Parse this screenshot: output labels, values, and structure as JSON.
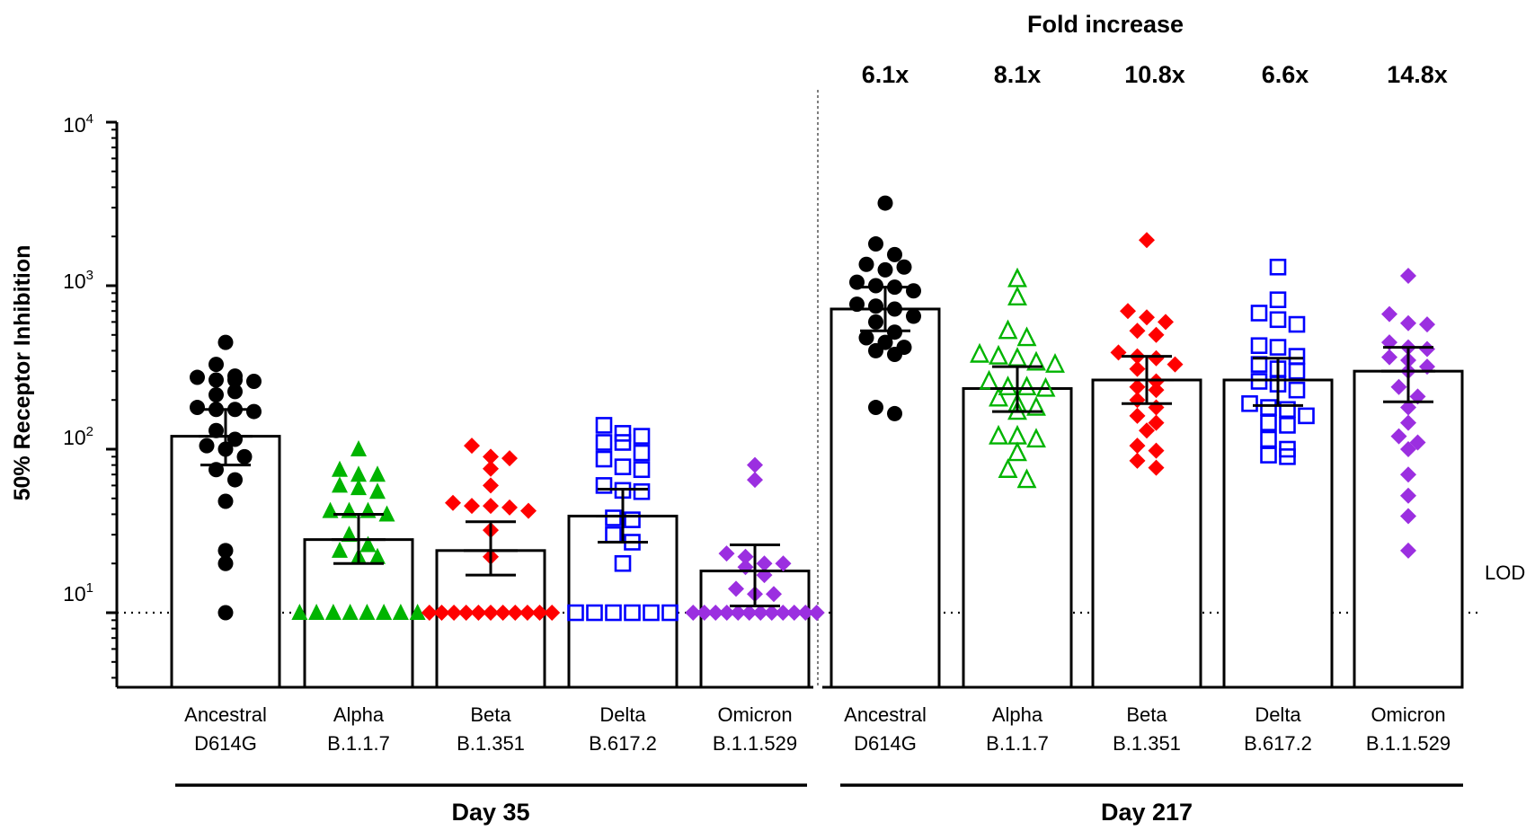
{
  "chart_data": {
    "type": "bar",
    "ylabel": "50% Receptor Inhibition",
    "yscale": "log",
    "ylim": [
      3.5,
      10000
    ],
    "ytick_labels": {
      "t1": {
        "base": "10",
        "exp": "1",
        "value": 10
      },
      "t2": {
        "base": "10",
        "exp": "2",
        "value": 100
      },
      "t3": {
        "base": "10",
        "exp": "3",
        "value": 1000
      },
      "t4": {
        "base": "10",
        "exp": "4",
        "value": 10000
      }
    },
    "lod": {
      "label": "LOD",
      "value": 10
    },
    "fold_header": "Fold increase",
    "group_labels": [
      "Day 35",
      "Day 217"
    ],
    "categories": [
      {
        "name": "Ancestral",
        "lineage": "D614G"
      },
      {
        "name": "Alpha",
        "lineage": "B.1.1.7"
      },
      {
        "name": "Beta",
        "lineage": "B.1.351"
      },
      {
        "name": "Delta",
        "lineage": "B.617.2"
      },
      {
        "name": "Omicron",
        "lineage": "B.1.1.529"
      },
      {
        "name": "Ancestral",
        "lineage": "D614G"
      },
      {
        "name": "Alpha",
        "lineage": "B.1.1.7"
      },
      {
        "name": "Beta",
        "lineage": "B.1.351"
      },
      {
        "name": "Delta",
        "lineage": "B.617.2"
      },
      {
        "name": "Omicron",
        "lineage": "B.1.1.529"
      }
    ],
    "fold_increase": [
      "6.1x",
      "8.1x",
      "10.8x",
      "6.6x",
      "14.8x"
    ],
    "bars": [
      {
        "group": "Day 35",
        "variant": "Ancestral",
        "marker": "filled-circle",
        "color": "#000000",
        "value": 120,
        "err_low": 80,
        "err_high": 175,
        "points": [
          450,
          330,
          275,
          265,
          265,
          260,
          280,
          215,
          225,
          180,
          175,
          175,
          170,
          130,
          115,
          105,
          100,
          90,
          75,
          65,
          48,
          24,
          20,
          10
        ]
      },
      {
        "group": "Day 35",
        "variant": "Alpha",
        "marker": "filled-triangle",
        "color": "#00b400",
        "value": 28,
        "err_low": 20,
        "err_high": 40,
        "points": [
          100,
          75,
          70,
          70,
          60,
          58,
          55,
          42,
          42,
          42,
          40,
          30,
          26,
          24,
          22,
          22,
          10,
          10,
          10,
          10,
          10,
          10,
          10,
          10
        ]
      },
      {
        "group": "Day 35",
        "variant": "Beta",
        "marker": "filled-diamond",
        "color": "#ff0000",
        "value": 24,
        "err_low": 17,
        "err_high": 36,
        "points": [
          105,
          90,
          88,
          76,
          60,
          47,
          45,
          45,
          44,
          42,
          32,
          22,
          10,
          10,
          10,
          10,
          10,
          10,
          10,
          10,
          10,
          10,
          10
        ]
      },
      {
        "group": "Day 35",
        "variant": "Delta",
        "marker": "open-square",
        "color": "#0000ff",
        "value": 39,
        "err_low": 27,
        "err_high": 57,
        "points": [
          140,
          125,
          120,
          110,
          110,
          95,
          87,
          78,
          75,
          60,
          56,
          55,
          38,
          37,
          30,
          27,
          20,
          10,
          10,
          10,
          10,
          10,
          10
        ]
      },
      {
        "group": "Day 35",
        "variant": "Omicron",
        "marker": "filled-diamond",
        "color": "#9b2fe0",
        "value": 18,
        "err_low": 11,
        "err_high": 26,
        "points": [
          80,
          65,
          23,
          22,
          20,
          20,
          19,
          17,
          14,
          13,
          13,
          10,
          10,
          10,
          10,
          10,
          10,
          10,
          10,
          10,
          10,
          10,
          10
        ]
      },
      {
        "group": "Day 217",
        "variant": "Ancestral",
        "marker": "filled-circle",
        "color": "#000000",
        "value": 720,
        "err_low": 530,
        "err_high": 980,
        "points": [
          3200,
          1800,
          1550,
          1350,
          1250,
          1300,
          1050,
          1000,
          980,
          930,
          770,
          750,
          720,
          650,
          600,
          520,
          480,
          450,
          420,
          400,
          380,
          180,
          165
        ]
      },
      {
        "group": "Day 217",
        "variant": "Alpha",
        "marker": "open-triangle",
        "color": "#00b400",
        "value": 235,
        "err_low": 170,
        "err_high": 320,
        "points": [
          1100,
          850,
          530,
          480,
          380,
          370,
          360,
          340,
          330,
          260,
          240,
          240,
          235,
          205,
          190,
          180,
          170,
          120,
          120,
          115,
          95,
          75,
          65
        ]
      },
      {
        "group": "Day 217",
        "variant": "Beta",
        "marker": "filled-diamond",
        "color": "#ff0000",
        "value": 265,
        "err_low": 190,
        "err_high": 370,
        "points": [
          1900,
          700,
          640,
          600,
          530,
          500,
          390,
          370,
          360,
          330,
          310,
          260,
          240,
          230,
          200,
          180,
          160,
          145,
          130,
          105,
          98,
          85,
          77
        ]
      },
      {
        "group": "Day 217",
        "variant": "Delta",
        "marker": "open-square",
        "color": "#0000ff",
        "value": 265,
        "err_low": 185,
        "err_high": 360,
        "points": [
          1300,
          820,
          680,
          620,
          580,
          430,
          420,
          370,
          330,
          310,
          300,
          260,
          250,
          230,
          190,
          180,
          175,
          160,
          145,
          140,
          115,
          100,
          92,
          90
        ]
      },
      {
        "group": "Day 217",
        "variant": "Omicron",
        "marker": "filled-diamond",
        "color": "#9b2fe0",
        "value": 300,
        "err_low": 195,
        "err_high": 420,
        "points": [
          1150,
          670,
          590,
          580,
          450,
          420,
          410,
          365,
          350,
          320,
          300,
          240,
          210,
          180,
          145,
          120,
          110,
          100,
          70,
          52,
          39,
          24
        ]
      }
    ]
  }
}
